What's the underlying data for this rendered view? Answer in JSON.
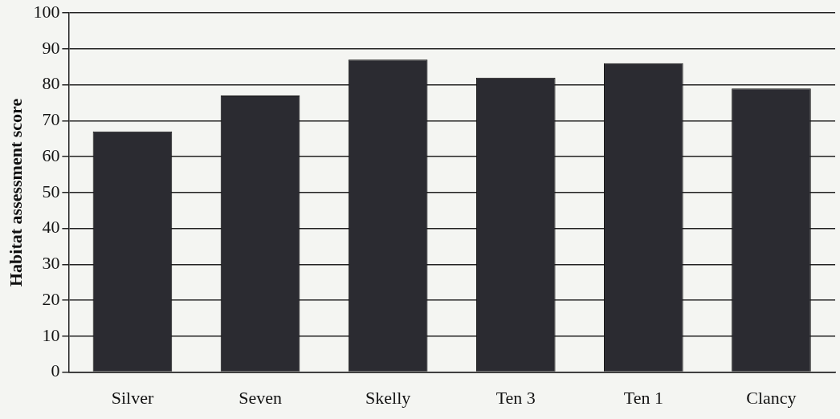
{
  "chart_data": {
    "type": "bar",
    "ylabel": "Habitat assessment score",
    "categories": [
      "Silver",
      "Seven",
      "Skelly",
      "Ten 3",
      "Ten 1",
      "Clancy"
    ],
    "values": [
      67,
      77,
      87,
      82,
      86,
      79
    ],
    "color": "#2b2b31",
    "ylim": [
      0,
      100
    ],
    "yticks": [
      0,
      10,
      20,
      30,
      40,
      50,
      60,
      70,
      80,
      90,
      100
    ],
    "grid": "y",
    "legend": false
  }
}
